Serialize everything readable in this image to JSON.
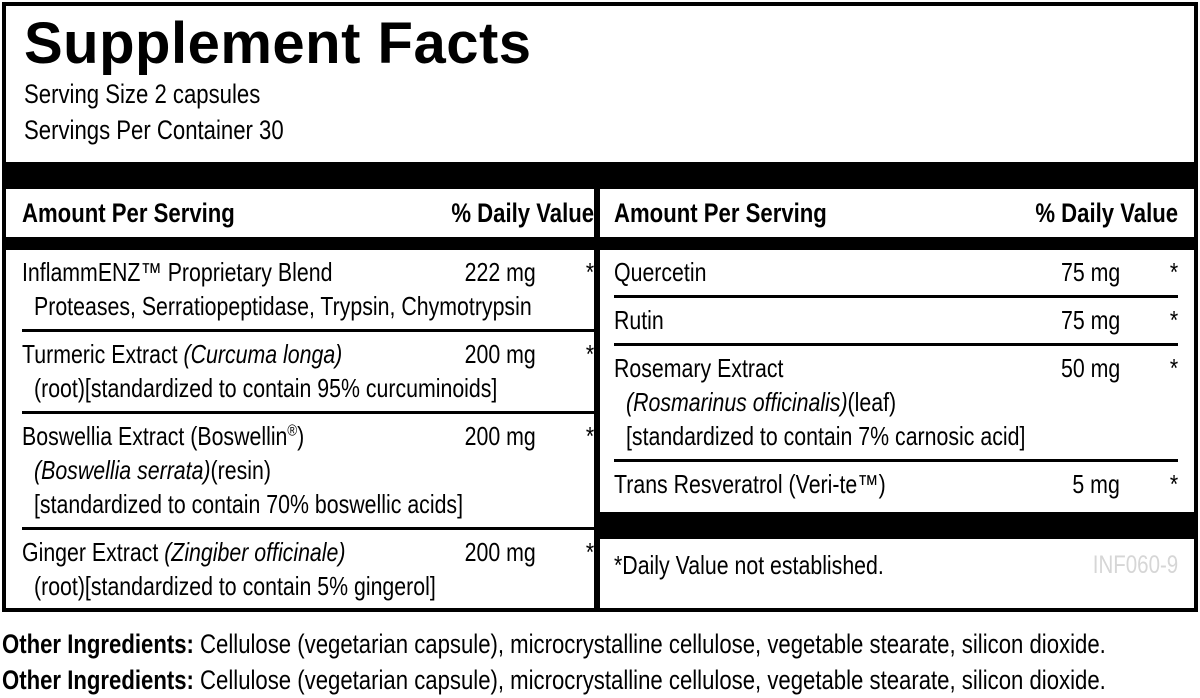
{
  "colors": {
    "ink": "#000000",
    "background": "#ffffff",
    "code_gray": "#d6d6d6"
  },
  "title": "Supplement Facts",
  "serving_size": "Serving Size 2 capsules",
  "servings_per_container": "Servings Per Container 30",
  "columns": [
    {
      "header_amount": "Amount Per Serving",
      "header_dv": "% Daily Value",
      "rows": [
        {
          "name": [
            {
              "text": "InflammENZ™ Proprietary Blend"
            }
          ],
          "amount": "222 mg",
          "dv": "*",
          "subs": [
            [
              {
                "text": "Proteases, Serratiopeptidase, Trypsin, Chymotrypsin"
              }
            ]
          ]
        },
        {
          "name": [
            {
              "text": "Turmeric Extract "
            },
            {
              "text": "(Curcuma longa)",
              "italic": true
            }
          ],
          "amount": "200 mg",
          "dv": "*",
          "subs": [
            [
              {
                "text": "(root)[standardized to contain 95% curcuminoids]"
              }
            ]
          ]
        },
        {
          "name": [
            {
              "text": "Boswellia Extract (Boswellin"
            },
            {
              "text": "®",
              "sup": true
            },
            {
              "text": ")"
            }
          ],
          "amount": "200 mg",
          "dv": "*",
          "subs": [
            [
              {
                "text": "(Boswellia serrata)",
                "italic": true
              },
              {
                "text": "(resin)"
              }
            ],
            [
              {
                "text": "[standardized to contain 70% boswellic acids]"
              }
            ]
          ]
        },
        {
          "name": [
            {
              "text": "Ginger Extract "
            },
            {
              "text": "(Zingiber officinale)",
              "italic": true
            }
          ],
          "amount": "200 mg",
          "dv": "*",
          "subs": [
            [
              {
                "text": "(root)[standardized to contain 5% gingerol]"
              }
            ]
          ]
        }
      ]
    },
    {
      "header_amount": "Amount Per Serving",
      "header_dv": "% Daily Value",
      "rows": [
        {
          "name": [
            {
              "text": "Quercetin"
            }
          ],
          "amount": "75 mg",
          "dv": "*",
          "subs": []
        },
        {
          "name": [
            {
              "text": "Rutin"
            }
          ],
          "amount": "75 mg",
          "dv": "*",
          "subs": []
        },
        {
          "name": [
            {
              "text": "Rosemary Extract"
            }
          ],
          "amount": "50 mg",
          "dv": "*",
          "subs": [
            [
              {
                "text": "(Rosmarinus officinalis)",
                "italic": true
              },
              {
                "text": "(leaf)"
              }
            ],
            [
              {
                "text": "[standardized to contain 7% carnosic acid]"
              }
            ]
          ]
        },
        {
          "name": [
            {
              "text": "Trans Resveratrol (Veri-te™)"
            }
          ],
          "amount": "5 mg",
          "dv": "*",
          "subs": []
        }
      ],
      "footnote": "*Daily Value not established.",
      "code": "INF060-9"
    }
  ],
  "other_ingredients": {
    "label": "Other Ingredients:",
    "text": " Cellulose (vegetarian capsule), microcrystalline cellulose, vegetable stearate, silicon dioxide."
  }
}
